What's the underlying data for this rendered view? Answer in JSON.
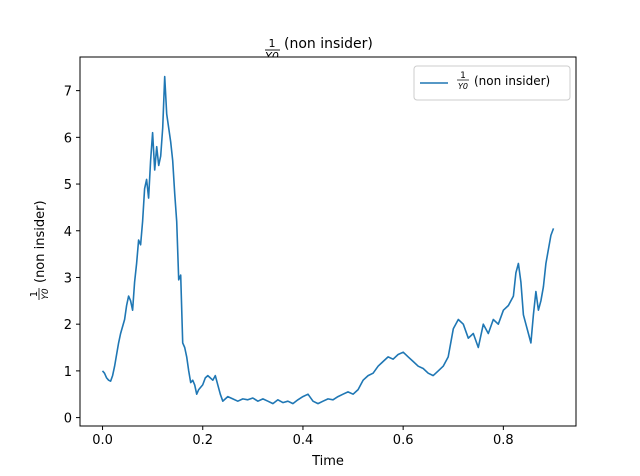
{
  "chart_data": {
    "type": "line",
    "title": {
      "frac_num": "1",
      "frac_den": "Y0",
      "suffix": "(non insider)"
    },
    "xlabel": "Time",
    "ylabel": {
      "frac_num": "1",
      "frac_den": "Y0",
      "suffix": "(non insider)"
    },
    "xlim": [
      -0.045,
      0.945
    ],
    "ylim": [
      -0.18,
      7.72
    ],
    "x_ticks": [
      {
        "value": 0.0,
        "label": "0.0"
      },
      {
        "value": 0.2,
        "label": "0.2"
      },
      {
        "value": 0.4,
        "label": "0.4"
      },
      {
        "value": 0.6,
        "label": "0.6"
      },
      {
        "value": 0.8,
        "label": "0.8"
      }
    ],
    "y_ticks": [
      {
        "value": 0,
        "label": "0"
      },
      {
        "value": 1,
        "label": "1"
      },
      {
        "value": 2,
        "label": "2"
      },
      {
        "value": 3,
        "label": "3"
      },
      {
        "value": 4,
        "label": "4"
      },
      {
        "value": 5,
        "label": "5"
      },
      {
        "value": 6,
        "label": "6"
      },
      {
        "value": 7,
        "label": "7"
      }
    ],
    "grid": false,
    "legend_position": "top-right",
    "color": "#1f77b4",
    "series": [
      {
        "name": {
          "frac_num": "1",
          "frac_den": "Y0",
          "suffix": "(non insider)"
        },
        "x": [
          0.0,
          0.004,
          0.008,
          0.012,
          0.016,
          0.02,
          0.024,
          0.028,
          0.032,
          0.036,
          0.04,
          0.044,
          0.048,
          0.052,
          0.056,
          0.06,
          0.064,
          0.068,
          0.072,
          0.076,
          0.08,
          0.084,
          0.088,
          0.092,
          0.096,
          0.1,
          0.104,
          0.108,
          0.112,
          0.116,
          0.12,
          0.124,
          0.128,
          0.132,
          0.136,
          0.14,
          0.144,
          0.148,
          0.152,
          0.156,
          0.16,
          0.164,
          0.168,
          0.172,
          0.176,
          0.18,
          0.184,
          0.188,
          0.192,
          0.196,
          0.2,
          0.205,
          0.21,
          0.215,
          0.22,
          0.225,
          0.23,
          0.235,
          0.24,
          0.245,
          0.25,
          0.26,
          0.27,
          0.28,
          0.29,
          0.3,
          0.31,
          0.32,
          0.33,
          0.34,
          0.35,
          0.36,
          0.37,
          0.38,
          0.39,
          0.4,
          0.41,
          0.42,
          0.43,
          0.44,
          0.45,
          0.46,
          0.47,
          0.48,
          0.49,
          0.5,
          0.51,
          0.52,
          0.53,
          0.54,
          0.55,
          0.56,
          0.57,
          0.58,
          0.59,
          0.6,
          0.61,
          0.62,
          0.63,
          0.64,
          0.65,
          0.66,
          0.67,
          0.68,
          0.69,
          0.7,
          0.71,
          0.72,
          0.73,
          0.74,
          0.75,
          0.76,
          0.77,
          0.78,
          0.79,
          0.8,
          0.81,
          0.82,
          0.825,
          0.83,
          0.835,
          0.84,
          0.845,
          0.85,
          0.855,
          0.86,
          0.865,
          0.87,
          0.875,
          0.88,
          0.885,
          0.89,
          0.895,
          0.9
        ],
        "values": [
          1.0,
          0.95,
          0.85,
          0.8,
          0.78,
          0.9,
          1.1,
          1.35,
          1.6,
          1.8,
          1.95,
          2.1,
          2.4,
          2.6,
          2.5,
          2.3,
          2.9,
          3.3,
          3.8,
          3.7,
          4.2,
          4.9,
          5.1,
          4.7,
          5.5,
          6.1,
          5.3,
          5.8,
          5.4,
          5.6,
          6.2,
          7.3,
          6.5,
          6.2,
          5.9,
          5.5,
          4.8,
          4.2,
          2.95,
          3.05,
          1.6,
          1.5,
          1.3,
          1.0,
          0.75,
          0.8,
          0.7,
          0.5,
          0.6,
          0.65,
          0.7,
          0.85,
          0.9,
          0.85,
          0.8,
          0.9,
          0.7,
          0.5,
          0.35,
          0.4,
          0.45,
          0.4,
          0.35,
          0.4,
          0.38,
          0.42,
          0.35,
          0.4,
          0.35,
          0.3,
          0.38,
          0.32,
          0.35,
          0.3,
          0.38,
          0.45,
          0.5,
          0.35,
          0.3,
          0.35,
          0.4,
          0.38,
          0.45,
          0.5,
          0.55,
          0.5,
          0.6,
          0.8,
          0.9,
          0.95,
          1.1,
          1.2,
          1.3,
          1.25,
          1.35,
          1.4,
          1.3,
          1.2,
          1.1,
          1.05,
          0.95,
          0.9,
          1.0,
          1.1,
          1.3,
          1.9,
          2.1,
          2.0,
          1.7,
          1.8,
          1.5,
          2.0,
          1.8,
          2.1,
          2.0,
          2.3,
          2.4,
          2.6,
          3.1,
          3.3,
          2.9,
          2.2,
          2.0,
          1.8,
          1.6,
          2.2,
          2.7,
          2.3,
          2.5,
          2.8,
          3.3,
          3.6,
          3.9,
          4.05
        ]
      }
    ]
  }
}
